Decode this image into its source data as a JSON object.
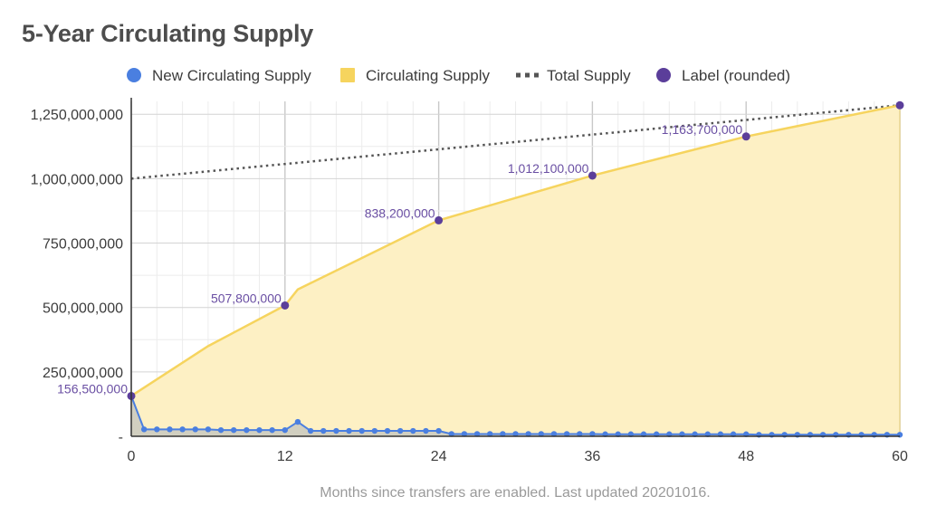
{
  "chart_data": {
    "type": "area",
    "title": "5-Year Circulating Supply",
    "xlabel": "Months since transfers are enabled. Last updated 20201016.",
    "ylabel": "",
    "xlim": [
      0,
      60
    ],
    "ylim": [
      0,
      1300000000
    ],
    "x_ticks": [
      "0",
      "12",
      "24",
      "36",
      "48",
      "60"
    ],
    "y_ticks": [
      "-",
      "250,000,000",
      "500,000,000",
      "750,000,000",
      "1,000,000,000",
      "1,250,000,000"
    ],
    "legend": [
      "New Circulating Supply",
      "Circulating Supply",
      "Total Supply",
      "Label (rounded)"
    ],
    "legend_position": "top",
    "grid": true,
    "colors": {
      "new_supply": "#4a7fe0",
      "circulating": "#f6d45e",
      "circulating_fill": "#fdf0c4",
      "total": "#555555",
      "label": "#5b3e9a"
    },
    "series": [
      {
        "name": "New Circulating Supply",
        "x": [
          0,
          1,
          2,
          3,
          4,
          5,
          6,
          7,
          8,
          9,
          10,
          11,
          12,
          13,
          14,
          15,
          16,
          17,
          18,
          19,
          20,
          21,
          22,
          23,
          24,
          25,
          26,
          27,
          28,
          29,
          30,
          31,
          32,
          33,
          34,
          35,
          36,
          37,
          38,
          39,
          40,
          41,
          42,
          43,
          44,
          45,
          46,
          47,
          48,
          49,
          50,
          51,
          52,
          53,
          54,
          55,
          56,
          57,
          58,
          59,
          60
        ],
        "values": [
          156500000,
          27000000,
          27000000,
          27000000,
          27000000,
          27000000,
          27000000,
          24000000,
          24000000,
          24000000,
          24000000,
          24000000,
          24000000,
          56000000,
          21000000,
          21000000,
          21000000,
          21000000,
          21000000,
          21000000,
          21000000,
          21000000,
          21000000,
          21000000,
          21000000,
          9000000,
          9000000,
          9000000,
          9000000,
          9000000,
          9000000,
          9000000,
          9000000,
          9000000,
          9000000,
          9000000,
          9000000,
          8000000,
          8000000,
          8000000,
          8000000,
          8000000,
          8000000,
          8000000,
          8000000,
          8000000,
          8000000,
          8000000,
          8000000,
          6000000,
          6000000,
          6000000,
          6000000,
          6000000,
          6000000,
          6000000,
          6000000,
          6000000,
          6000000,
          6000000,
          6000000
        ]
      },
      {
        "name": "Circulating Supply",
        "x": [
          0,
          6,
          12,
          13,
          24,
          36,
          48,
          60
        ],
        "values": [
          156500000,
          350000000,
          507800000,
          570000000,
          838200000,
          1012100000,
          1163700000,
          1285000000
        ]
      },
      {
        "name": "Total Supply",
        "x": [
          0,
          60
        ],
        "values": [
          1000000000,
          1285000000
        ]
      },
      {
        "name": "Label (rounded)",
        "x": [
          0,
          12,
          24,
          36,
          48,
          60
        ],
        "values": [
          156500000,
          507800000,
          838200000,
          1012100000,
          1163700000,
          1285000000
        ],
        "labels": [
          "156,500,000",
          "507,800,000",
          "838,200,000",
          "1,012,100,000",
          "1,163,700,000",
          ""
        ]
      }
    ]
  }
}
